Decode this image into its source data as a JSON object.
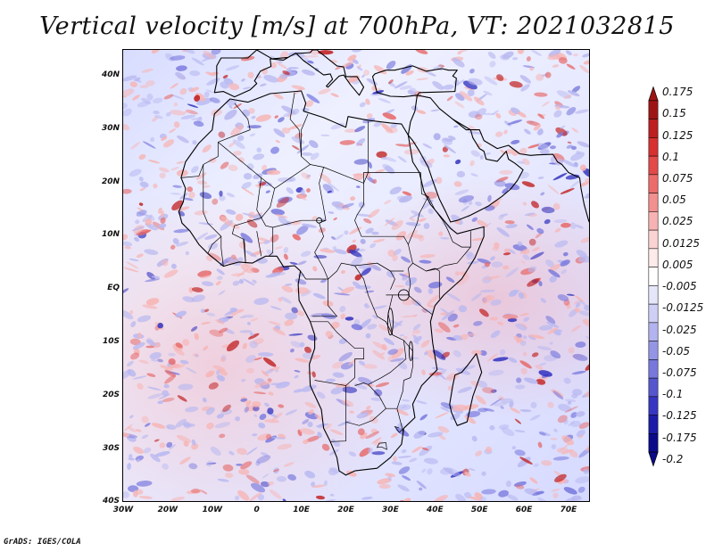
{
  "title": "Vertical velocity [m/s] at 700hPa, VT: 2021032815",
  "credit": "GrADS: IGES/COLA",
  "lat_labels": [
    "40N",
    "30N",
    "20N",
    "10N",
    "EQ",
    "10S",
    "20S",
    "30S",
    "40S"
  ],
  "lon_labels": [
    "30W",
    "20W",
    "10W",
    "0",
    "10E",
    "20E",
    "30E",
    "40E",
    "50E",
    "60E",
    "70E"
  ],
  "colorbar": {
    "labels": [
      "0.175",
      "0.15",
      "0.125",
      "0.1",
      "0.075",
      "0.05",
      "0.025",
      "0.0125",
      "0.005",
      "-0.005",
      "-0.0125",
      "-0.025",
      "-0.05",
      "-0.075",
      "-0.1",
      "-0.125",
      "-0.175",
      "-0.2"
    ],
    "colors": [
      "#9e1414",
      "#bd2020",
      "#d63030",
      "#e34a4a",
      "#ec6c6c",
      "#f28f8f",
      "#f7b3b3",
      "#fbd3d3",
      "#fdeaea",
      "#ffffff",
      "#e6e6fb",
      "#cfcff5",
      "#b3b3ef",
      "#9595e6",
      "#7777dc",
      "#5656cf",
      "#3636c2",
      "#1c1ca8",
      "#0b0b8a"
    ]
  },
  "domain": {
    "lon_min": -30,
    "lon_max": 75,
    "lat_min": -40,
    "lat_max": 45
  }
}
